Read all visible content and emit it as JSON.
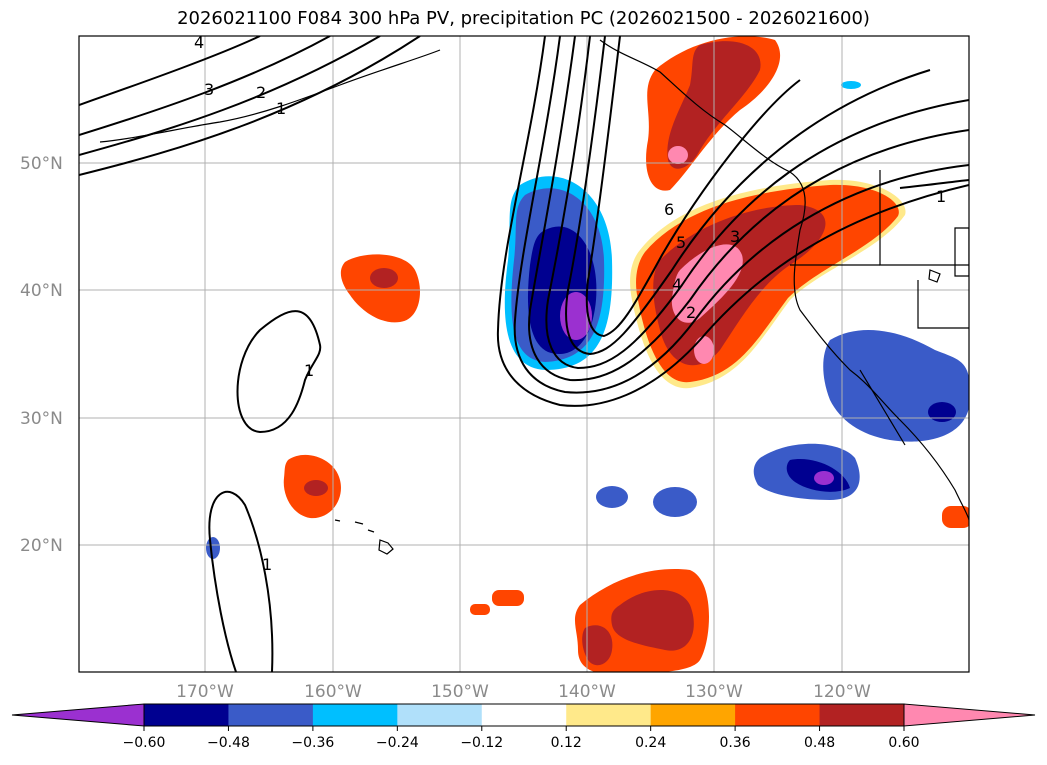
{
  "title": "2026021100 F084 300 hPa PV, precipitation PC (2026021500 - 2026021600)",
  "map": {
    "lon_range": [
      -180,
      -110
    ],
    "lat_range": [
      10,
      60
    ],
    "lat_labels": [
      "50°N",
      "40°N",
      "30°N",
      "20°N"
    ],
    "lon_labels": [
      "170°W",
      "160°W",
      "150°W",
      "140°W",
      "130°W",
      "120°W"
    ],
    "pv_contour_labels": [
      "4",
      "3",
      "2",
      "1",
      "1",
      "1",
      "6",
      "5",
      "4",
      "3",
      "2",
      "1"
    ],
    "pv_contour_color": "#000000",
    "gridlines": true
  },
  "colorbar": {
    "ticks": [
      "−0.60",
      "−0.48",
      "−0.36",
      "−0.24",
      "−0.12",
      "0.12",
      "0.24",
      "0.36",
      "0.48",
      "0.60"
    ],
    "colors": [
      "#9b30d0",
      "#000090",
      "#3a5bc8",
      "#00bfff",
      "#b0e0fa",
      "#ffffff",
      "#ffe98a",
      "#ffa500",
      "#ff4500",
      "#b22222",
      "#ff88b0"
    ],
    "extend": "both"
  }
}
